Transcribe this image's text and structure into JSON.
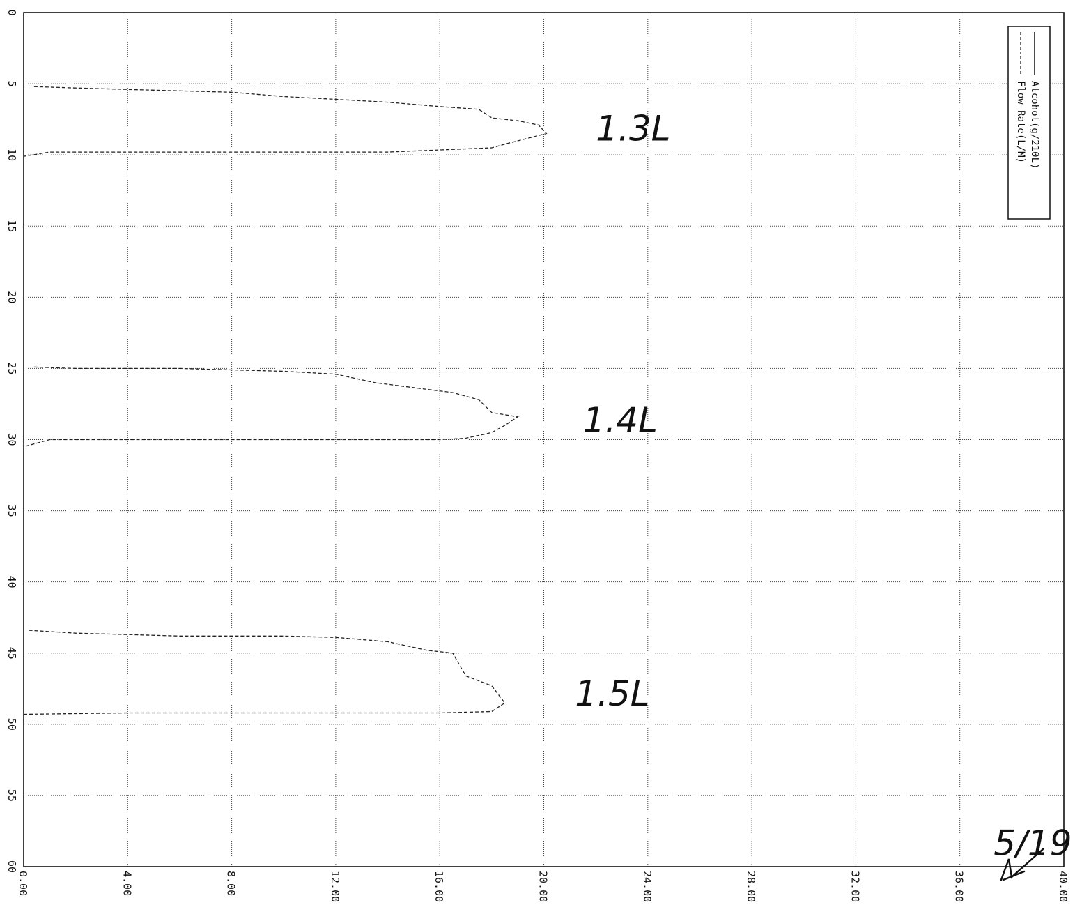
{
  "chart_data": {
    "type": "line",
    "title": "",
    "xlabel": "",
    "ylabel": "",
    "x_axis": {
      "label": "",
      "range": [
        0,
        60
      ],
      "ticks": [
        "0",
        "5",
        "10",
        "15",
        "20",
        "25",
        "30",
        "35",
        "40",
        "45",
        "50",
        "55",
        "60"
      ]
    },
    "y_axis": {
      "label": "",
      "range": [
        0,
        40
      ],
      "ticks": [
        "0.00",
        "4.00",
        "8.00",
        "12.00",
        "16.00",
        "20.00",
        "24.00",
        "28.00",
        "32.00",
        "36.00",
        "40.00"
      ]
    },
    "grid": true,
    "legend_position": "top-right",
    "series": [
      {
        "name": "Alcohol(g/210L)",
        "style": "solid",
        "points": []
      },
      {
        "name": "Flow Rate(L/M)",
        "style": "dashed",
        "segments": [
          [
            [
              5.2,
              0.4
            ],
            [
              5.3,
              2.0
            ],
            [
              5.4,
              4.0
            ],
            [
              5.5,
              6.0
            ],
            [
              5.6,
              8.0
            ],
            [
              5.9,
              10.0
            ],
            [
              6.1,
              12.0
            ],
            [
              6.3,
              14.0
            ],
            [
              6.6,
              16.0
            ],
            [
              6.8,
              17.5
            ],
            [
              7.4,
              18.0
            ],
            [
              7.6,
              19.0
            ],
            [
              7.9,
              19.8
            ],
            [
              8.5,
              20.1
            ],
            [
              9.2,
              18.6
            ],
            [
              9.5,
              18.0
            ],
            [
              9.8,
              14.0
            ],
            [
              9.8,
              12.0
            ],
            [
              9.8,
              8.0
            ],
            [
              9.8,
              4.0
            ],
            [
              9.8,
              1.0
            ],
            [
              10.1,
              0.0
            ]
          ],
          [
            [
              24.9,
              0.4
            ],
            [
              25.0,
              2.0
            ],
            [
              25.0,
              4.0
            ],
            [
              25.0,
              6.0
            ],
            [
              25.1,
              8.0
            ],
            [
              25.2,
              10.0
            ],
            [
              25.4,
              12.0
            ],
            [
              26.0,
              13.5
            ],
            [
              26.7,
              16.5
            ],
            [
              27.2,
              17.5
            ],
            [
              28.1,
              18.0
            ],
            [
              28.4,
              19.0
            ],
            [
              29.0,
              18.5
            ],
            [
              29.5,
              18.0
            ],
            [
              29.9,
              17.0
            ],
            [
              30.0,
              16.0
            ],
            [
              30.0,
              12.0
            ],
            [
              30.0,
              8.0
            ],
            [
              30.0,
              4.0
            ],
            [
              30.0,
              1.0
            ],
            [
              30.5,
              0.0
            ]
          ],
          [
            [
              43.4,
              0.2
            ],
            [
              43.6,
              2.0
            ],
            [
              43.7,
              4.0
            ],
            [
              43.8,
              6.0
            ],
            [
              43.8,
              8.0
            ],
            [
              43.8,
              10.0
            ],
            [
              43.9,
              12.0
            ],
            [
              44.2,
              14.0
            ],
            [
              44.8,
              15.5
            ],
            [
              45.0,
              16.5
            ],
            [
              46.6,
              17.0
            ],
            [
              47.3,
              18.0
            ],
            [
              48.5,
              18.5
            ],
            [
              49.1,
              18.0
            ],
            [
              49.2,
              16.0
            ],
            [
              49.2,
              12.0
            ],
            [
              49.2,
              8.0
            ],
            [
              49.2,
              4.0
            ],
            [
              49.3,
              0.0
            ]
          ]
        ]
      }
    ],
    "annotations": [
      {
        "text": "1.3L",
        "x": 8.1,
        "y": 22.0,
        "handwritten": true
      },
      {
        "text": "1.4L",
        "x": 28.6,
        "y": 21.5,
        "handwritten": true
      },
      {
        "text": "1.5L",
        "x": 47.8,
        "y": 21.2,
        "handwritten": true
      },
      {
        "text": "5/19",
        "x": 58.3,
        "y": 37.3,
        "handwritten": true
      }
    ]
  }
}
